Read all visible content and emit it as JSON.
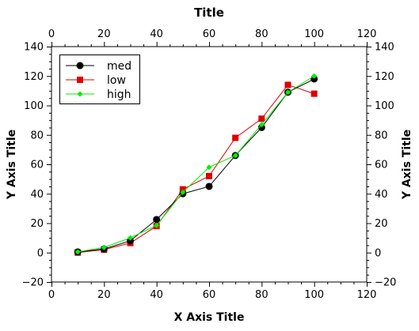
{
  "chart_data": {
    "type": "line",
    "title": "Title",
    "xlabel": "X Axis Title",
    "ylabel": "Y Axis Title",
    "y2label": "Y Axis Title",
    "xlim": [
      0,
      120
    ],
    "ylim": [
      -20,
      140
    ],
    "xticks": [
      0,
      20,
      40,
      60,
      80,
      100,
      120
    ],
    "yticks": [
      -20,
      0,
      20,
      40,
      60,
      80,
      100,
      120,
      140
    ],
    "grid": false,
    "legend_position": "top-left",
    "x": [
      10,
      20,
      30,
      40,
      50,
      60,
      70,
      80,
      90,
      100
    ],
    "series": [
      {
        "name": "med",
        "color": "#000000",
        "marker": "circle",
        "values": [
          0.5,
          2.5,
          8,
          22.5,
          40,
          45,
          66,
          85,
          109,
          118
        ]
      },
      {
        "name": "low",
        "color": "#dd0000",
        "marker": "square",
        "values": [
          0,
          2,
          6.5,
          18,
          43,
          52,
          78,
          91,
          114,
          108
        ]
      },
      {
        "name": "high",
        "color": "#00ee00",
        "marker": "diamond",
        "values": [
          0.5,
          3.5,
          10,
          18.5,
          41,
          58,
          66,
          87,
          109,
          120
        ]
      }
    ]
  }
}
